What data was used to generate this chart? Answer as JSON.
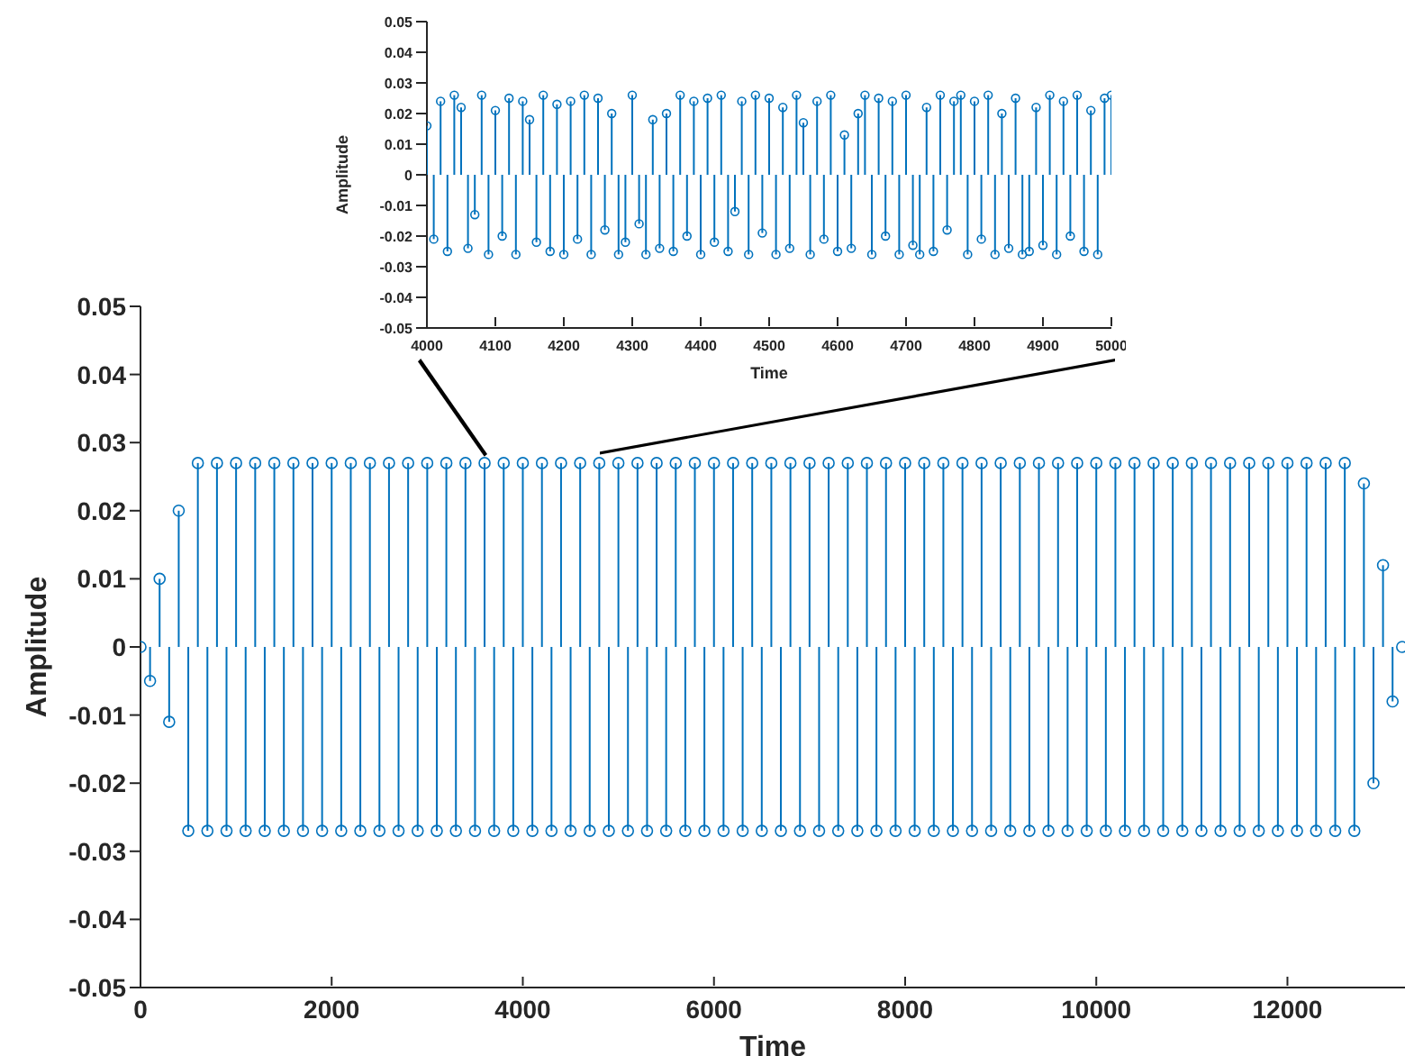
{
  "chart_data": [
    {
      "type": "lollipop",
      "xlabel": "Time",
      "ylabel": "Amplitude",
      "color": "#0072bd",
      "marker": "circle",
      "xlim": [
        0,
        13230
      ],
      "xticks": [
        0,
        2000,
        4000,
        6000,
        8000,
        10000,
        12000
      ],
      "ylim": [
        -0.05,
        0.05
      ],
      "yticks": [
        -0.05,
        -0.04,
        -0.03,
        -0.02,
        -0.01,
        0,
        0.01,
        0.02,
        0.03,
        0.04,
        0.05
      ],
      "x": [
        0,
        100,
        200,
        300,
        400,
        500,
        600,
        700,
        800,
        900,
        1000,
        1100,
        1200,
        1300,
        1400,
        1500,
        1600,
        1700,
        1800,
        1900,
        2000,
        2100,
        2200,
        2300,
        2400,
        2500,
        2600,
        2700,
        2800,
        2900,
        3000,
        3100,
        3200,
        3300,
        3400,
        3500,
        3600,
        3700,
        3800,
        3900,
        4000,
        4100,
        4200,
        4300,
        4400,
        4500,
        4600,
        4700,
        4800,
        4900,
        5000,
        5100,
        5200,
        5300,
        5400,
        5500,
        5600,
        5700,
        5800,
        5900,
        6000,
        6100,
        6200,
        6300,
        6400,
        6500,
        6600,
        6700,
        6800,
        6900,
        7000,
        7100,
        7200,
        7300,
        7400,
        7500,
        7600,
        7700,
        7800,
        7900,
        8000,
        8100,
        8200,
        8300,
        8400,
        8500,
        8600,
        8700,
        8800,
        8900,
        9000,
        9100,
        9200,
        9300,
        9400,
        9500,
        9600,
        9700,
        9800,
        9900,
        10000,
        10100,
        10200,
        10300,
        10400,
        10500,
        10600,
        10700,
        10800,
        10900,
        11000,
        11100,
        11200,
        11300,
        11400,
        11500,
        11600,
        11700,
        11800,
        11900,
        12000,
        12100,
        12200,
        12300,
        12400,
        12500,
        12600,
        12700,
        12800,
        12900,
        13000,
        13100,
        13200
      ],
      "values": [
        0,
        -0.005,
        0.01,
        -0.011,
        0.02,
        -0.027,
        0.027,
        -0.027,
        0.027,
        -0.027,
        0.027,
        -0.027,
        0.027,
        -0.027,
        0.027,
        -0.027,
        0.027,
        -0.027,
        0.027,
        -0.027,
        0.027,
        -0.027,
        0.027,
        -0.027,
        0.027,
        -0.027,
        0.027,
        -0.027,
        0.027,
        -0.027,
        0.027,
        -0.027,
        0.027,
        -0.027,
        0.027,
        -0.027,
        0.027,
        -0.027,
        0.027,
        -0.027,
        0.027,
        -0.027,
        0.027,
        -0.027,
        0.027,
        -0.027,
        0.027,
        -0.027,
        0.027,
        -0.027,
        0.027,
        -0.027,
        0.027,
        -0.027,
        0.027,
        -0.027,
        0.027,
        -0.027,
        0.027,
        -0.027,
        0.027,
        -0.027,
        0.027,
        -0.027,
        0.027,
        -0.027,
        0.027,
        -0.027,
        0.027,
        -0.027,
        0.027,
        -0.027,
        0.027,
        -0.027,
        0.027,
        -0.027,
        0.027,
        -0.027,
        0.027,
        -0.027,
        0.027,
        -0.027,
        0.027,
        -0.027,
        0.027,
        -0.027,
        0.027,
        -0.027,
        0.027,
        -0.027,
        0.027,
        -0.027,
        0.027,
        -0.027,
        0.027,
        -0.027,
        0.027,
        -0.027,
        0.027,
        -0.027,
        0.027,
        -0.027,
        0.027,
        -0.027,
        0.027,
        -0.027,
        0.027,
        -0.027,
        0.027,
        -0.027,
        0.027,
        -0.027,
        0.027,
        -0.027,
        0.027,
        -0.027,
        0.027,
        -0.027,
        0.027,
        -0.027,
        0.027,
        -0.027,
        0.027,
        -0.027,
        0.027,
        -0.027,
        0.027,
        -0.027,
        0.024,
        -0.02,
        0.012,
        -0.008,
        0
      ]
    },
    {
      "type": "lollipop",
      "xlabel": "Time",
      "ylabel": "Amplitude",
      "color": "#0072bd",
      "marker": "circle",
      "xlim": [
        4000,
        5000
      ],
      "xticks": [
        4000,
        4100,
        4200,
        4300,
        4400,
        4500,
        4600,
        4700,
        4800,
        4900,
        5000
      ],
      "ylim": [
        -0.05,
        0.05
      ],
      "yticks": [
        -0.05,
        -0.04,
        -0.03,
        -0.02,
        -0.01,
        0,
        0.01,
        0.02,
        0.03,
        0.04,
        0.05
      ],
      "x": [
        4000,
        4010,
        4020,
        4030,
        4040,
        4050,
        4060,
        4070,
        4080,
        4090,
        4100,
        4110,
        4120,
        4130,
        4140,
        4150,
        4160,
        4170,
        4180,
        4190,
        4200,
        4210,
        4220,
        4230,
        4240,
        4250,
        4260,
        4270,
        4280,
        4290,
        4300,
        4310,
        4320,
        4330,
        4340,
        4350,
        4360,
        4370,
        4380,
        4390,
        4400,
        4410,
        4420,
        4430,
        4440,
        4450,
        4460,
        4470,
        4480,
        4490,
        4500,
        4510,
        4520,
        4530,
        4540,
        4550,
        4560,
        4570,
        4580,
        4590,
        4600,
        4610,
        4620,
        4630,
        4640,
        4650,
        4660,
        4670,
        4680,
        4690,
        4700,
        4710,
        4720,
        4730,
        4740,
        4750,
        4760,
        4770,
        4780,
        4790,
        4800,
        4810,
        4820,
        4830,
        4840,
        4850,
        4860,
        4870,
        4880,
        4890,
        4900,
        4910,
        4920,
        4930,
        4940,
        4950,
        4960,
        4970,
        4980,
        4990,
        5000
      ],
      "values": [
        0.016,
        -0.021,
        0.024,
        -0.025,
        0.026,
        0.022,
        -0.024,
        -0.013,
        0.026,
        -0.026,
        0.021,
        -0.02,
        0.025,
        -0.026,
        0.024,
        0.018,
        -0.022,
        0.026,
        -0.025,
        0.023,
        -0.026,
        0.024,
        -0.021,
        0.026,
        -0.026,
        0.025,
        -0.018,
        0.02,
        -0.026,
        -0.022,
        0.026,
        -0.016,
        -0.026,
        0.018,
        -0.024,
        0.02,
        -0.025,
        0.026,
        -0.02,
        0.024,
        -0.026,
        0.025,
        -0.022,
        0.026,
        -0.025,
        -0.012,
        0.024,
        -0.026,
        0.026,
        -0.019,
        0.025,
        -0.026,
        0.022,
        -0.024,
        0.026,
        0.017,
        -0.026,
        0.024,
        -0.021,
        0.026,
        -0.025,
        0.013,
        -0.024,
        0.02,
        0.026,
        -0.026,
        0.025,
        -0.02,
        0.024,
        -0.026,
        0.026,
        -0.023,
        -0.026,
        0.022,
        -0.025,
        0.026,
        -0.018,
        0.024,
        0.026,
        -0.026,
        0.024,
        -0.021,
        0.026,
        -0.026,
        0.02,
        -0.024,
        0.025,
        -0.026,
        -0.025,
        0.022,
        -0.023,
        0.026,
        -0.026,
        0.024,
        -0.02,
        0.026,
        -0.025,
        0.021,
        -0.026,
        0.025,
        0.026
      ]
    }
  ]
}
